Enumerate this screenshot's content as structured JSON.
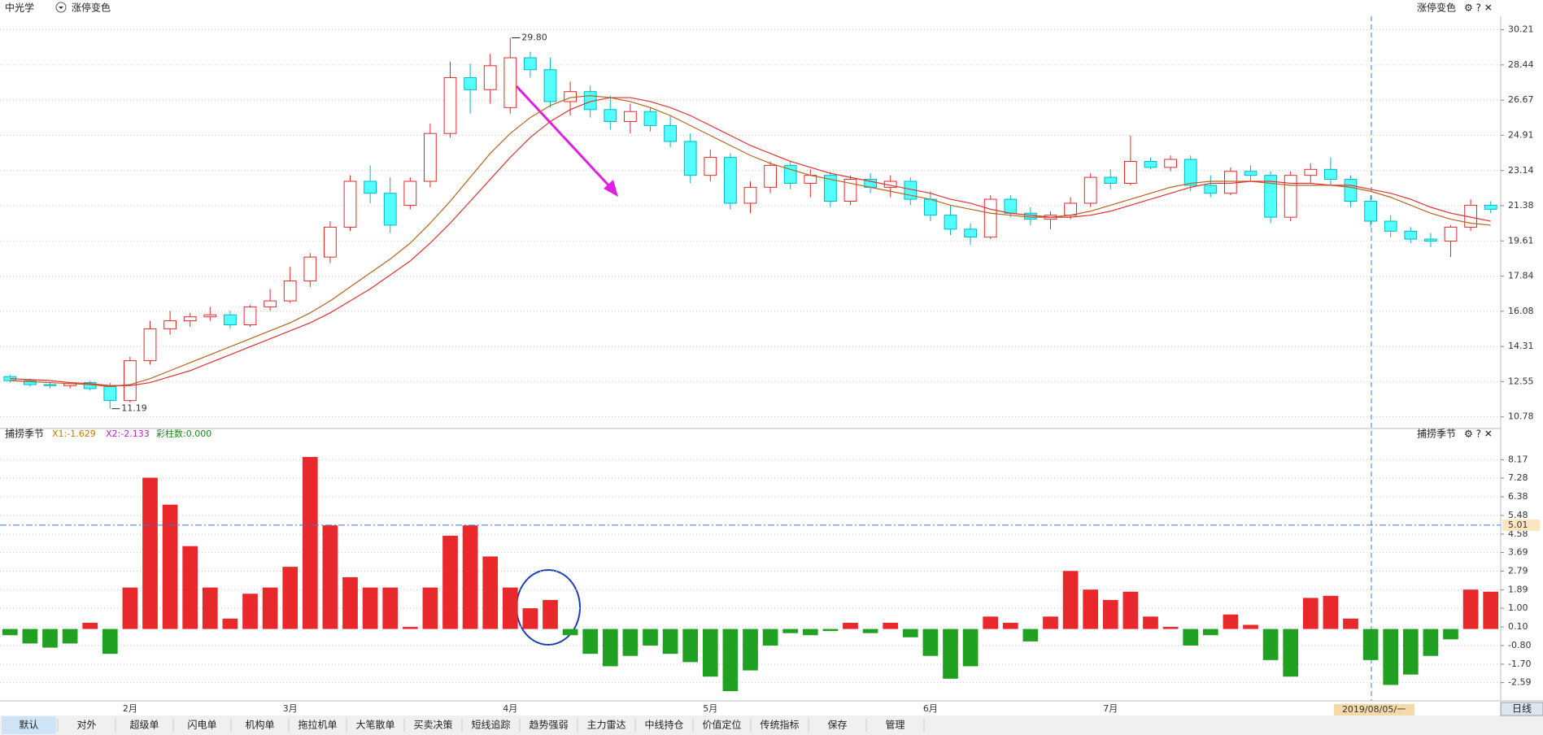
{
  "header": {
    "stock": "中光学",
    "option": "涨停变色",
    "right_option": "涨停变色"
  },
  "annotations": {
    "high_label": "29.80",
    "low_label": "11.19"
  },
  "chart_data": [
    {
      "type": "candlestick",
      "open": [
        12.8,
        12.6,
        12.4,
        12.35,
        12.5,
        12.3,
        11.6,
        13.6,
        15.2,
        15.6,
        15.8,
        15.9,
        15.4,
        16.3,
        16.6,
        17.6,
        18.8,
        20.3,
        22.6,
        22.0,
        21.4,
        22.6,
        25.0,
        27.8,
        27.2,
        26.3,
        28.8,
        28.2,
        26.6,
        27.1,
        26.2,
        25.6,
        26.1,
        25.4,
        24.6,
        22.9,
        23.8,
        21.5,
        22.3,
        23.4,
        22.5,
        22.9,
        21.6,
        22.7,
        22.3,
        22.6,
        21.7,
        20.9,
        20.2,
        19.8,
        21.7,
        21.0,
        20.7,
        20.9,
        21.5,
        22.8,
        22.5,
        23.6,
        23.3,
        23.7,
        22.4,
        22.0,
        23.1,
        22.9,
        20.8,
        22.9,
        23.2,
        22.7,
        21.6,
        20.6,
        20.1,
        19.7,
        19.6,
        20.3,
        21.4
      ],
      "high": [
        12.9,
        12.7,
        12.5,
        12.5,
        12.6,
        12.5,
        13.8,
        15.6,
        16.1,
        16.0,
        16.3,
        16.1,
        16.4,
        17.2,
        18.3,
        19.0,
        20.6,
        22.9,
        23.4,
        22.8,
        22.8,
        25.5,
        28.6,
        28.5,
        29.0,
        29.8,
        29.1,
        28.8,
        27.6,
        27.4,
        26.9,
        26.5,
        26.3,
        25.9,
        25.0,
        24.2,
        24.0,
        22.6,
        23.6,
        23.6,
        23.2,
        23.1,
        22.9,
        23.0,
        22.9,
        22.8,
        22.1,
        21.4,
        20.5,
        21.9,
        21.9,
        21.3,
        21.1,
        21.8,
        23.0,
        23.2,
        24.9,
        23.8,
        23.9,
        23.9,
        22.9,
        23.3,
        23.4,
        23.1,
        23.1,
        23.5,
        23.8,
        22.9,
        21.9,
        20.9,
        20.3,
        20.0,
        20.4,
        21.7,
        21.6
      ],
      "low": [
        12.5,
        12.3,
        12.2,
        12.2,
        12.1,
        11.19,
        11.5,
        13.4,
        14.9,
        15.3,
        15.6,
        15.2,
        15.3,
        16.1,
        16.5,
        17.3,
        18.5,
        20.1,
        21.5,
        20.0,
        21.2,
        22.3,
        24.8,
        26.0,
        26.5,
        26.0,
        27.8,
        26.3,
        25.9,
        25.8,
        25.2,
        25.0,
        25.1,
        24.3,
        22.5,
        22.6,
        21.2,
        21.0,
        22.0,
        22.2,
        21.8,
        21.3,
        21.4,
        22.0,
        21.8,
        21.4,
        20.6,
        19.9,
        19.4,
        19.7,
        20.8,
        20.4,
        20.2,
        20.7,
        21.3,
        22.2,
        22.4,
        23.2,
        23.1,
        22.1,
        21.8,
        21.9,
        22.6,
        20.5,
        20.6,
        22.5,
        22.4,
        21.3,
        20.3,
        19.8,
        19.5,
        19.3,
        18.8,
        20.1,
        21.0
      ],
      "close": [
        12.6,
        12.4,
        12.35,
        12.45,
        12.2,
        11.6,
        13.6,
        15.2,
        15.6,
        15.8,
        15.9,
        15.4,
        16.3,
        16.6,
        17.6,
        18.8,
        20.3,
        22.6,
        22.0,
        20.4,
        22.6,
        25.0,
        27.8,
        27.2,
        28.4,
        28.8,
        28.2,
        26.6,
        27.1,
        26.2,
        25.6,
        26.1,
        25.4,
        24.6,
        22.9,
        23.8,
        21.5,
        22.3,
        23.4,
        22.5,
        22.9,
        21.6,
        22.7,
        22.3,
        22.6,
        21.7,
        20.9,
        20.2,
        19.8,
        21.7,
        21.0,
        20.7,
        20.9,
        21.5,
        22.8,
        22.5,
        23.6,
        23.3,
        23.7,
        22.4,
        22.0,
        23.1,
        22.9,
        20.8,
        22.9,
        23.2,
        22.7,
        21.6,
        20.6,
        20.1,
        19.7,
        19.6,
        20.3,
        21.4,
        21.2
      ],
      "up_color": "#e8282b",
      "down_color": "#54ffff",
      "series": [
        {
          "color": "#b5651d",
          "values": [
            12.6,
            12.55,
            12.5,
            12.45,
            12.4,
            12.3,
            12.4,
            12.7,
            13.1,
            13.5,
            13.9,
            14.3,
            14.7,
            15.1,
            15.5,
            16.0,
            16.6,
            17.3,
            18.0,
            18.7,
            19.5,
            20.5,
            21.6,
            22.8,
            24.0,
            25.0,
            25.8,
            26.4,
            26.8,
            26.9,
            26.8,
            26.6,
            26.3,
            25.9,
            25.4,
            24.9,
            24.4,
            23.9,
            23.5,
            23.2,
            22.9,
            22.7,
            22.5,
            22.3,
            22.1,
            21.9,
            21.7,
            21.4,
            21.2,
            21.0,
            20.9,
            20.8,
            20.8,
            20.9,
            21.1,
            21.4,
            21.7,
            22.0,
            22.3,
            22.5,
            22.6,
            22.6,
            22.6,
            22.5,
            22.4,
            22.4,
            22.4,
            22.3,
            22.1,
            21.8,
            21.4,
            21.0,
            20.7,
            20.5,
            20.4
          ]
        },
        {
          "color": "#e03030",
          "values": [
            12.7,
            12.65,
            12.6,
            12.5,
            12.45,
            12.35,
            12.35,
            12.5,
            12.8,
            13.1,
            13.5,
            13.9,
            14.3,
            14.7,
            15.1,
            15.5,
            16.0,
            16.6,
            17.2,
            17.9,
            18.6,
            19.5,
            20.5,
            21.6,
            22.7,
            23.8,
            24.8,
            25.6,
            26.2,
            26.6,
            26.8,
            26.8,
            26.6,
            26.3,
            25.9,
            25.4,
            24.9,
            24.4,
            24.0,
            23.6,
            23.3,
            23.0,
            22.8,
            22.6,
            22.4,
            22.2,
            22.0,
            21.7,
            21.5,
            21.2,
            21.0,
            20.9,
            20.8,
            20.8,
            20.9,
            21.1,
            21.4,
            21.7,
            22.0,
            22.3,
            22.5,
            22.5,
            22.6,
            22.6,
            22.5,
            22.5,
            22.4,
            22.4,
            22.2,
            22.0,
            21.7,
            21.3,
            21.0,
            20.8,
            20.6
          ]
        }
      ],
      "ylim": [
        10.28,
        30.8
      ],
      "yticks": [
        30.21,
        28.44,
        26.67,
        24.91,
        23.14,
        21.38,
        19.61,
        17.84,
        16.08,
        14.31,
        12.55,
        10.78
      ],
      "grid": true
    },
    {
      "type": "bar",
      "title": "捕捞季节",
      "legend_texts": [
        "X1:-1.629",
        "X2:-2.133",
        "彩柱数:0.000"
      ],
      "categories": [
        null,
        null,
        null,
        null,
        null,
        null,
        "2月",
        null,
        null,
        null,
        null,
        null,
        null,
        null,
        "3月",
        null,
        null,
        null,
        null,
        null,
        null,
        null,
        null,
        null,
        null,
        "4月",
        null,
        null,
        null,
        null,
        null,
        null,
        null,
        null,
        null,
        "5月",
        null,
        null,
        null,
        null,
        null,
        null,
        null,
        null,
        null,
        null,
        "6月",
        null,
        null,
        null,
        null,
        null,
        null,
        null,
        null,
        "7月",
        null,
        null,
        null,
        null,
        null,
        null,
        null,
        null,
        null,
        null,
        null,
        null,
        null,
        null,
        null,
        null,
        null,
        null,
        null
      ],
      "values": [
        -0.3,
        -0.7,
        -0.9,
        -0.7,
        0.3,
        -1.2,
        2.0,
        7.3,
        6.0,
        4.0,
        2.0,
        0.5,
        1.7,
        2.0,
        3.0,
        8.3,
        5.0,
        2.5,
        2.0,
        2.0,
        0.1,
        2.0,
        4.5,
        5.0,
        3.5,
        2.0,
        1.0,
        1.4,
        -0.3,
        -1.2,
        -1.8,
        -1.3,
        -0.8,
        -1.2,
        -1.6,
        -2.3,
        -3.0,
        -2.0,
        -0.8,
        -0.2,
        -0.3,
        -0.1,
        0.3,
        -0.2,
        0.3,
        -0.4,
        -1.3,
        -2.4,
        -1.8,
        0.6,
        0.3,
        -0.6,
        0.6,
        2.8,
        1.9,
        1.4,
        1.8,
        0.6,
        0.1,
        -0.8,
        -0.3,
        0.7,
        0.2,
        -1.5,
        -2.3,
        1.5,
        1.6,
        0.5,
        -1.5,
        -2.7,
        -2.2,
        -1.3,
        -0.5,
        1.9,
        1.8
      ],
      "positive_color": "#e8282b",
      "negative_color": "#21a121",
      "reference_line": 5.01,
      "ylim": [
        -3.39,
        8.97
      ],
      "yticks": [
        8.17,
        7.28,
        6.38,
        5.48,
        4.58,
        3.69,
        2.79,
        1.89,
        {
          "value": 1,
          "label": "1.00"
        },
        {
          "value": 0.1,
          "label": "0.10"
        },
        {
          "value": -0.8,
          "label": "-0.80"
        },
        {
          "value": -1.7,
          "label": "-1.70"
        },
        -2.59
      ],
      "grid": true
    }
  ],
  "footer": {
    "cursor_date": "2019/08/05/一",
    "period": "日线",
    "tabs": [
      "默认",
      "对外",
      "超级单",
      "闪电单",
      "机构单",
      "拖拉机单",
      "大笔散单",
      "买卖决策",
      "短线追踪",
      "趋势强弱",
      "主力雷达",
      "中线持仓",
      "价值定位",
      "传统指标",
      "保存",
      "管理"
    ]
  }
}
